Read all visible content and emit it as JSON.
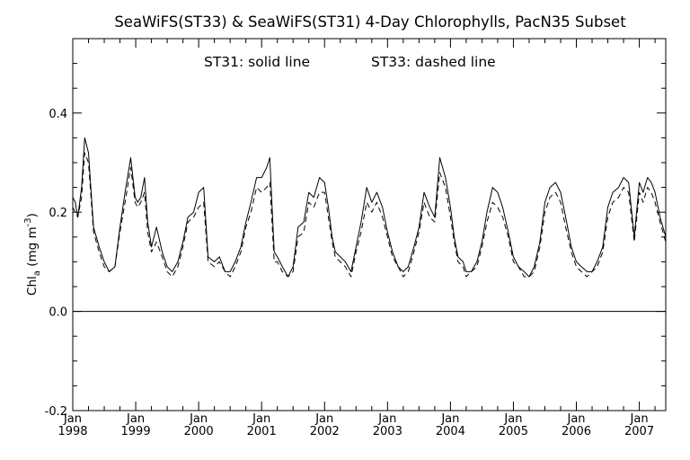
{
  "chart_data": {
    "type": "line",
    "title": "SeaWiFS(ST33) & SeaWiFS(ST31) 4-Day Chlorophylls, PacN35 Subset",
    "annotation": {
      "st31": "ST31: solid line",
      "st33": "ST33: dashed line"
    },
    "ylabel": {
      "main": "Chl",
      "sub": "a",
      "units_open": " (mg m",
      "units_sup": "-3",
      "units_close": ")"
    },
    "xlim": [
      1998.0,
      2007.42
    ],
    "ylim": [
      -0.2,
      0.55
    ],
    "zero_line": 0.0,
    "yticks": [
      {
        "value": -0.2,
        "label": "-0.2"
      },
      {
        "value": 0.0,
        "label": "0.0"
      },
      {
        "value": 0.2,
        "label": "0.2"
      },
      {
        "value": 0.4,
        "label": "0.4"
      }
    ],
    "y_minor_step": 0.05,
    "xticks": [
      {
        "value": 1998,
        "month": "Jan",
        "year": "1998"
      },
      {
        "value": 1999,
        "month": "Jan",
        "year": "1999"
      },
      {
        "value": 2000,
        "month": "Jan",
        "year": "2000"
      },
      {
        "value": 2001,
        "month": "Jan",
        "year": "2001"
      },
      {
        "value": 2002,
        "month": "Jan",
        "year": "2002"
      },
      {
        "value": 2003,
        "month": "Jan",
        "year": "2003"
      },
      {
        "value": 2004,
        "month": "Jan",
        "year": "2004"
      },
      {
        "value": 2005,
        "month": "Jan",
        "year": "2005"
      },
      {
        "value": 2006,
        "month": "Jan",
        "year": "2006"
      },
      {
        "value": 2007,
        "month": "Jan",
        "year": "2007"
      }
    ],
    "x_minor_months": [
      3,
      6,
      9
    ],
    "series": [
      {
        "name": "ST31",
        "style": "solid",
        "x": [
          1998.0,
          1998.04,
          1998.08,
          1998.14,
          1998.19,
          1998.25,
          1998.33,
          1998.42,
          1998.5,
          1998.58,
          1998.67,
          1998.75,
          1998.83,
          1998.92,
          1998.99,
          1999.03,
          1999.08,
          1999.14,
          1999.19,
          1999.25,
          1999.33,
          1999.42,
          1999.5,
          1999.58,
          1999.67,
          1999.75,
          1999.83,
          1999.92,
          2000.0,
          2000.08,
          2000.15,
          2000.25,
          2000.33,
          2000.42,
          2000.5,
          2000.58,
          2000.67,
          2000.75,
          2000.83,
          2000.92,
          2001.0,
          2001.08,
          2001.13,
          2001.2,
          2001.25,
          2001.33,
          2001.42,
          2001.5,
          2001.58,
          2001.67,
          2001.75,
          2001.83,
          2001.92,
          2002.0,
          2002.06,
          2002.12,
          2002.17,
          2002.25,
          2002.33,
          2002.42,
          2002.5,
          2002.58,
          2002.67,
          2002.75,
          2002.83,
          2002.92,
          2003.0,
          2003.08,
          2003.17,
          2003.25,
          2003.33,
          2003.42,
          2003.5,
          2003.58,
          2003.67,
          2003.75,
          2003.83,
          2003.92,
          2004.0,
          2004.06,
          2004.12,
          2004.2,
          2004.25,
          2004.33,
          2004.42,
          2004.5,
          2004.58,
          2004.67,
          2004.75,
          2004.83,
          2004.92,
          2005.0,
          2005.08,
          2005.17,
          2005.25,
          2005.33,
          2005.42,
          2005.5,
          2005.58,
          2005.67,
          2005.75,
          2005.83,
          2005.92,
          2006.0,
          2006.08,
          2006.17,
          2006.25,
          2006.33,
          2006.42,
          2006.5,
          2006.58,
          2006.67,
          2006.75,
          2006.83,
          2006.92,
          2007.0,
          2007.06,
          2007.13,
          2007.19,
          2007.25,
          2007.33,
          2007.42
        ],
        "values": [
          0.23,
          0.22,
          0.19,
          0.25,
          0.35,
          0.32,
          0.17,
          0.13,
          0.1,
          0.08,
          0.09,
          0.17,
          0.24,
          0.31,
          0.23,
          0.22,
          0.23,
          0.27,
          0.18,
          0.13,
          0.17,
          0.12,
          0.09,
          0.08,
          0.1,
          0.14,
          0.19,
          0.2,
          0.24,
          0.25,
          0.11,
          0.1,
          0.11,
          0.08,
          0.08,
          0.1,
          0.13,
          0.18,
          0.22,
          0.27,
          0.27,
          0.29,
          0.31,
          0.12,
          0.11,
          0.09,
          0.07,
          0.09,
          0.17,
          0.18,
          0.24,
          0.23,
          0.27,
          0.26,
          0.21,
          0.15,
          0.12,
          0.11,
          0.1,
          0.08,
          0.13,
          0.18,
          0.25,
          0.22,
          0.24,
          0.21,
          0.16,
          0.12,
          0.09,
          0.08,
          0.09,
          0.13,
          0.17,
          0.24,
          0.21,
          0.19,
          0.31,
          0.27,
          0.21,
          0.15,
          0.11,
          0.1,
          0.08,
          0.08,
          0.1,
          0.14,
          0.2,
          0.25,
          0.24,
          0.21,
          0.16,
          0.11,
          0.09,
          0.08,
          0.07,
          0.09,
          0.14,
          0.22,
          0.25,
          0.26,
          0.24,
          0.19,
          0.13,
          0.1,
          0.09,
          0.08,
          0.08,
          0.1,
          0.13,
          0.21,
          0.24,
          0.25,
          0.27,
          0.26,
          0.15,
          0.26,
          0.24,
          0.27,
          0.26,
          0.24,
          0.19,
          0.15
        ]
      },
      {
        "name": "ST33",
        "style": "dashed",
        "x": [
          1998.0,
          1998.04,
          1998.08,
          1998.14,
          1998.19,
          1998.25,
          1998.33,
          1998.42,
          1998.5,
          1998.58,
          1998.67,
          1998.75,
          1998.83,
          1998.92,
          1998.99,
          1999.03,
          1999.08,
          1999.14,
          1999.19,
          1999.25,
          1999.33,
          1999.42,
          1999.5,
          1999.58,
          1999.67,
          1999.75,
          1999.83,
          1999.92,
          2000.0,
          2000.08,
          2000.15,
          2000.25,
          2000.33,
          2000.42,
          2000.5,
          2000.58,
          2000.67,
          2000.75,
          2000.83,
          2000.92,
          2001.0,
          2001.08,
          2001.13,
          2001.2,
          2001.25,
          2001.33,
          2001.42,
          2001.5,
          2001.58,
          2001.67,
          2001.75,
          2001.83,
          2001.92,
          2002.0,
          2002.06,
          2002.12,
          2002.17,
          2002.25,
          2002.33,
          2002.42,
          2002.5,
          2002.58,
          2002.67,
          2002.75,
          2002.83,
          2002.92,
          2003.0,
          2003.08,
          2003.17,
          2003.25,
          2003.33,
          2003.42,
          2003.5,
          2003.58,
          2003.67,
          2003.75,
          2003.83,
          2003.92,
          2004.0,
          2004.06,
          2004.12,
          2004.2,
          2004.25,
          2004.33,
          2004.42,
          2004.5,
          2004.58,
          2004.67,
          2004.75,
          2004.83,
          2004.92,
          2005.0,
          2005.08,
          2005.17,
          2005.25,
          2005.33,
          2005.42,
          2005.5,
          2005.58,
          2005.67,
          2005.75,
          2005.83,
          2005.92,
          2006.0,
          2006.08,
          2006.17,
          2006.25,
          2006.33,
          2006.42,
          2006.5,
          2006.58,
          2006.67,
          2006.75,
          2006.83,
          2006.92,
          2007.0,
          2007.06,
          2007.13,
          2007.19,
          2007.25,
          2007.33,
          2007.42
        ],
        "values": [
          0.21,
          0.2,
          0.19,
          0.23,
          0.32,
          0.3,
          0.16,
          0.12,
          0.09,
          0.08,
          0.09,
          0.16,
          0.22,
          0.29,
          0.22,
          0.21,
          0.22,
          0.24,
          0.16,
          0.12,
          0.14,
          0.11,
          0.08,
          0.07,
          0.09,
          0.13,
          0.18,
          0.19,
          0.21,
          0.22,
          0.1,
          0.09,
          0.1,
          0.08,
          0.07,
          0.09,
          0.12,
          0.17,
          0.2,
          0.25,
          0.24,
          0.25,
          0.26,
          0.1,
          0.1,
          0.08,
          0.07,
          0.08,
          0.15,
          0.16,
          0.22,
          0.21,
          0.24,
          0.24,
          0.19,
          0.14,
          0.11,
          0.1,
          0.09,
          0.07,
          0.12,
          0.16,
          0.22,
          0.2,
          0.22,
          0.19,
          0.15,
          0.11,
          0.09,
          0.07,
          0.08,
          0.12,
          0.16,
          0.22,
          0.19,
          0.18,
          0.28,
          0.25,
          0.19,
          0.14,
          0.1,
          0.09,
          0.07,
          0.08,
          0.09,
          0.13,
          0.18,
          0.22,
          0.21,
          0.19,
          0.15,
          0.1,
          0.09,
          0.07,
          0.07,
          0.08,
          0.13,
          0.2,
          0.23,
          0.24,
          0.22,
          0.17,
          0.12,
          0.09,
          0.08,
          0.07,
          0.08,
          0.09,
          0.12,
          0.19,
          0.22,
          0.23,
          0.25,
          0.24,
          0.14,
          0.24,
          0.22,
          0.25,
          0.24,
          0.22,
          0.18,
          0.14
        ]
      }
    ]
  }
}
